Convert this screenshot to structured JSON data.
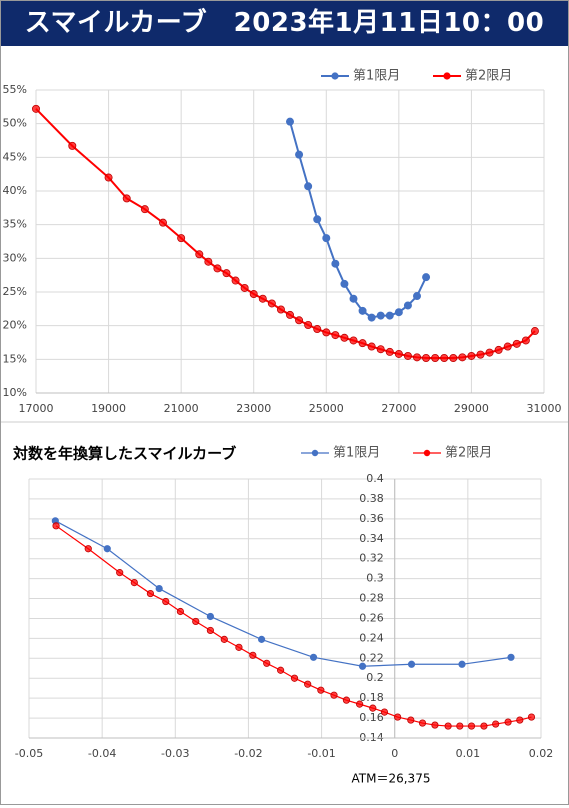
{
  "header": {
    "title": "スマイルカーブ　2023年1月11日10：00"
  },
  "chart_data": [
    {
      "type": "line",
      "xlim": [
        17000,
        31000
      ],
      "xticks": [
        17000,
        19000,
        21000,
        23000,
        25000,
        27000,
        29000,
        31000
      ],
      "ylim": [
        10,
        55
      ],
      "yticks": [
        {
          "value": 10,
          "label": "10%"
        },
        {
          "value": 15,
          "label": "15%"
        },
        {
          "value": 20,
          "label": "20%"
        },
        {
          "value": 25,
          "label": "25%"
        },
        {
          "value": 30,
          "label": "30%"
        },
        {
          "value": 35,
          "label": "35%"
        },
        {
          "value": 40,
          "label": "40%"
        },
        {
          "value": 45,
          "label": "45%"
        },
        {
          "value": 50,
          "label": "50%"
        },
        {
          "value": 55,
          "label": "55%"
        }
      ],
      "grid": true,
      "legend": "top-right",
      "series": [
        {
          "name": "第1限月",
          "color": "#4472c4",
          "x": [
            24000,
            24250,
            24500,
            24750,
            25000,
            25250,
            25500,
            25750,
            26000,
            26250,
            26500,
            26750,
            27000,
            27250,
            27500,
            27750
          ],
          "values": [
            50.3,
            45.4,
            40.7,
            35.8,
            33.0,
            29.2,
            26.2,
            24.0,
            22.2,
            21.2,
            21.5,
            21.5,
            22.0,
            23.0,
            24.4,
            27.2
          ]
        },
        {
          "name": "第2限月",
          "color": "#ff0000",
          "x": [
            17000,
            18000,
            19000,
            19500,
            20000,
            20500,
            21000,
            21500,
            21750,
            22000,
            22250,
            22500,
            22750,
            23000,
            23250,
            23500,
            23750,
            24000,
            24250,
            24500,
            24750,
            25000,
            25250,
            25500,
            25750,
            26000,
            26250,
            26500,
            26750,
            27000,
            27250,
            27500,
            27750,
            28000,
            28250,
            28500,
            28750,
            29000,
            29250,
            29500,
            29750,
            30000,
            30250,
            30500,
            30750
          ],
          "values": [
            52.2,
            46.7,
            42.0,
            38.9,
            37.3,
            35.3,
            33.0,
            30.6,
            29.5,
            28.5,
            27.8,
            26.7,
            25.6,
            24.7,
            24.0,
            23.3,
            22.4,
            21.6,
            20.8,
            20.1,
            19.5,
            19.0,
            18.6,
            18.2,
            17.8,
            17.4,
            16.9,
            16.5,
            16.1,
            15.8,
            15.5,
            15.3,
            15.2,
            15.2,
            15.2,
            15.2,
            15.3,
            15.5,
            15.7,
            16.0,
            16.4,
            16.9,
            17.3,
            17.8,
            19.2
          ]
        }
      ]
    },
    {
      "type": "line",
      "title": "対数を年換算したスマイルカーブ",
      "xlim": [
        -0.05,
        0.02
      ],
      "xticks": [
        -0.05,
        -0.04,
        -0.03,
        -0.02,
        -0.01,
        0,
        0.01,
        0.02
      ],
      "ylim": [
        0.14,
        0.4
      ],
      "yticks": [
        0.14,
        0.16,
        0.18,
        0.2,
        0.22,
        0.24,
        0.26,
        0.28,
        0.3,
        0.32,
        0.34,
        0.36,
        0.38,
        0.4
      ],
      "grid": true,
      "legend": "top-right",
      "annotations": [
        "ATM＝26,375"
      ],
      "series": [
        {
          "name": "第1限月",
          "color": "#4472c4",
          "x": [
            -0.0464,
            -0.0393,
            -0.0322,
            -0.0252,
            -0.0182,
            -0.0111,
            -0.0044,
            0.0023,
            0.0092,
            0.0159
          ],
          "values": [
            0.358,
            0.33,
            0.29,
            0.262,
            0.239,
            0.221,
            0.212,
            0.214,
            0.214,
            0.221
          ]
        },
        {
          "name": "第2限月",
          "color": "#ff0000",
          "x": [
            -0.0463,
            -0.0419,
            -0.0376,
            -0.0356,
            -0.0334,
            -0.0313,
            -0.0293,
            -0.0272,
            -0.0252,
            -0.0233,
            -0.0213,
            -0.0194,
            -0.0175,
            -0.0156,
            -0.0137,
            -0.0119,
            -0.0101,
            -0.0083,
            -0.0066,
            -0.0048,
            -0.003,
            -0.0014,
            0.0004,
            0.0022,
            0.0038,
            0.0055,
            0.0073,
            0.0089,
            0.0105,
            0.0122,
            0.0138,
            0.0155,
            0.0171,
            0.0187
          ],
          "values": [
            0.353,
            0.33,
            0.306,
            0.296,
            0.285,
            0.277,
            0.267,
            0.257,
            0.248,
            0.239,
            0.231,
            0.223,
            0.215,
            0.208,
            0.2,
            0.194,
            0.188,
            0.183,
            0.178,
            0.174,
            0.17,
            0.166,
            0.161,
            0.158,
            0.155,
            0.153,
            0.152,
            0.152,
            0.152,
            0.152,
            0.154,
            0.156,
            0.158,
            0.161
          ]
        }
      ]
    }
  ]
}
